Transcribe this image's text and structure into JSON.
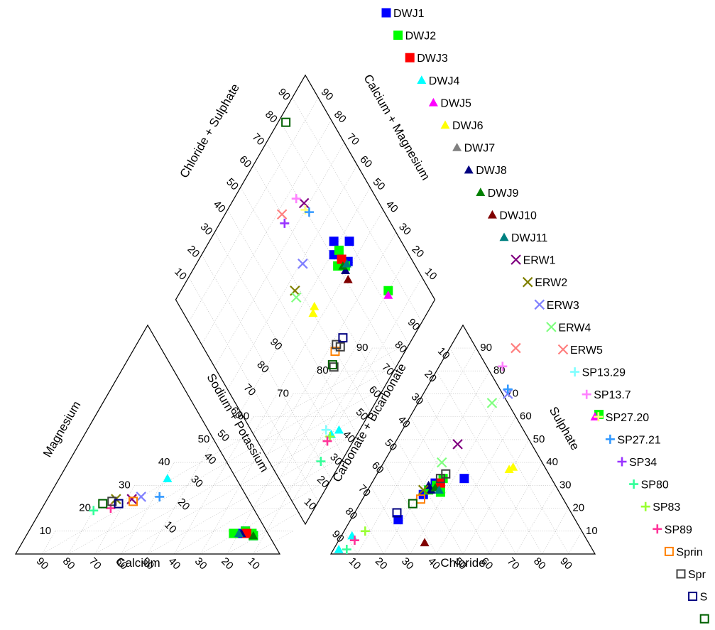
{
  "chart_data": {
    "type": "scatter",
    "subtype": "piper-diagram",
    "title": "",
    "axes": {
      "cation_bottom": "Calcium",
      "cation_left": "Magnesium",
      "cation_right": "Sodium + Potassium",
      "anion_bottom": "Chloride",
      "anion_left": "Carbonate + Bicarbonate",
      "anion_right": "Sulphate",
      "diamond_left": "Chloride + Sulphate",
      "diamond_right": "Calcium + Magnesium"
    },
    "ticks": [
      "10",
      "20",
      "30",
      "40",
      "50",
      "60",
      "70",
      "80",
      "90"
    ],
    "range": [
      0,
      100
    ],
    "grid": true,
    "legend_position": "right",
    "series": [
      {
        "name": "DWJ1",
        "marker": "square",
        "color": "#0000ff",
        "cations": [
          [
            14,
            8
          ],
          [
            20,
            9
          ],
          [
            18,
            10
          ]
        ],
        "anions": [
          [
            24,
            31
          ],
          [
            34,
            33
          ],
          [
            22,
            26
          ],
          [
            18,
            15
          ]
        ],
        "diamond": [
          [
            42,
            75
          ],
          [
            49,
            71
          ],
          [
            52,
            74
          ],
          [
            46,
            80
          ]
        ]
      },
      {
        "name": "DWJ2",
        "marker": "square",
        "color": "#00ff00",
        "cations": [
          [
            18,
            10
          ],
          [
            22,
            9
          ],
          [
            15,
            9
          ],
          [
            14,
            8
          ]
        ],
        "anions": [
          [
            25,
            30
          ],
          [
            26,
            33
          ],
          [
            28,
            27
          ],
          [
            23,
            28
          ],
          [
            71,
            61
          ]
        ],
        "diamond": [
          [
            42,
            73
          ],
          [
            45,
            70
          ],
          [
            48,
            74
          ],
          [
            20,
            84
          ]
        ]
      },
      {
        "name": "DWJ3",
        "marker": "square",
        "color": "#ff0000",
        "cations": [
          [
            17,
            9
          ]
        ],
        "anions": [
          [
            26,
            31
          ]
        ],
        "diamond": [
          [
            45,
            73
          ]
        ]
      },
      {
        "name": "DWJ4",
        "marker": "triangle",
        "color": "#00ffff",
        "cations": [
          [
            59,
            33
          ]
        ],
        "anions": [
          [
            2,
            2
          ],
          [
            4,
            8
          ]
        ],
        "diamond": [
          [
            8,
            34
          ],
          [
            10,
            30
          ]
        ]
      },
      {
        "name": "DWJ5",
        "marker": "triangle",
        "color": "#ff00ff",
        "cations": [],
        "anions": [
          [
            70,
            60
          ]
        ],
        "diamond": [
          [
            19,
            83
          ]
        ]
      },
      {
        "name": "DWJ6",
        "marker": "triangle",
        "color": "#ffff00",
        "cations": [],
        "anions": [
          [
            50,
            38
          ],
          [
            49,
            37
          ]
        ],
        "diamond": [
          [
            44,
            50
          ],
          [
            45,
            52
          ]
        ]
      },
      {
        "name": "DWJ7",
        "marker": "triangle",
        "color": "#808080",
        "cations": [],
        "anions": [],
        "diamond": []
      },
      {
        "name": "DWJ8",
        "marker": "triangle",
        "color": "#000080",
        "cations": [
          [
            19,
            9
          ]
        ],
        "anions": [
          [
            24,
            28
          ],
          [
            22,
            30
          ]
        ],
        "diamond": [
          [
            41,
            72
          ]
        ]
      },
      {
        "name": "DWJ9",
        "marker": "triangle",
        "color": "#008000",
        "cations": [
          [
            14,
            8
          ]
        ],
        "anions": [
          [
            25,
            29
          ]
        ],
        "diamond": [
          [
            43,
            72
          ]
        ]
      },
      {
        "name": "DWJ10",
        "marker": "triangle",
        "color": "#800000",
        "cations": [],
        "anions": [
          [
            33,
            5
          ]
        ],
        "diamond": [
          [
            38,
            71
          ]
        ]
      },
      {
        "name": "DWJ11",
        "marker": "triangle",
        "color": "#008080",
        "cations": [
          [
            20,
            9
          ]
        ],
        "anions": [
          [
            27,
            28
          ]
        ],
        "diamond": [
          [
            42,
            74
          ]
        ]
      },
      {
        "name": "ERW1",
        "marker": "x",
        "color": "#800080",
        "cations": [
          [
            68,
            24
          ]
        ],
        "anions": [
          [
            24,
            48
          ]
        ],
        "diamond": [
          [
            72,
            71
          ]
        ]
      },
      {
        "name": "ERW2",
        "marker": "x",
        "color": "#808000",
        "cations": [
          [
            74,
            24
          ]
        ],
        "anions": [
          [
            21,
            28
          ]
        ],
        "diamond": [
          [
            56,
            48
          ]
        ]
      },
      {
        "name": "ERW3",
        "marker": "x",
        "color": "#8080ff",
        "cations": [
          [
            65,
            25
          ]
        ],
        "anions": [
          [
            32,
            70
          ]
        ],
        "diamond": [
          [
            59,
            57
          ]
        ]
      },
      {
        "name": "ERW4",
        "marker": "x",
        "color": "#80ff80",
        "cations": [],
        "anions": [
          [
            22,
            40
          ],
          [
            28,
            66
          ]
        ],
        "diamond": [
          [
            54,
            47
          ]
        ]
      },
      {
        "name": "ERW5",
        "marker": "x",
        "color": "#ff8080",
        "cations": [],
        "anions": [
          [
            25,
            90
          ]
        ],
        "diamond": [
          [
            78,
            60
          ]
        ]
      },
      {
        "name": "SP13.29",
        "marker": "plus",
        "color": "#80ffff",
        "cations": [],
        "anions": [],
        "diamond": [
          [
            13,
            29
          ]
        ]
      },
      {
        "name": "SP13.7",
        "marker": "plus",
        "color": "#ff80ff",
        "cations": [],
        "anions": [
          [
            24,
            82
          ]
        ],
        "diamond": [
          [
            76,
            69
          ]
        ]
      },
      {
        "name": "SP27.20",
        "marker": "plus",
        "color": "#ffff80",
        "cations": [],
        "anions": [],
        "diamond": [
          [
            70,
            70
          ]
        ]
      },
      {
        "name": "SP27.21",
        "marker": "plus",
        "color": "#3399ff",
        "cations": [
          [
            58,
            25
          ]
        ],
        "anions": [
          [
            31,
            72
          ]
        ],
        "diamond": [
          [
            68,
            71
          ]
        ]
      },
      {
        "name": "SP34",
        "marker": "plus",
        "color": "#9933ff",
        "cations": [],
        "anions": [],
        "diamond": [
          [
            75,
            59
          ]
        ]
      },
      {
        "name": "SP80",
        "marker": "plus",
        "color": "#33ff99",
        "cations": [
          [
            80,
            19
          ]
        ],
        "anions": [
          [
            5,
            2
          ]
        ],
        "diamond": [
          [
            8,
            20
          ]
        ]
      },
      {
        "name": "SP83",
        "marker": "plus",
        "color": "#99ff33",
        "cations": [],
        "anions": [
          [
            8,
            10
          ]
        ],
        "diamond": [
          [
            10,
            29
          ]
        ]
      },
      {
        "name": "SP89",
        "marker": "plus",
        "color": "#ff3399",
        "cations": [
          [
            74,
            20
          ]
        ],
        "anions": [
          [
            6,
            6
          ]
        ],
        "diamond": [
          [
            10,
            27
          ]
        ]
      },
      {
        "name": "Sprin",
        "marker": "open-square",
        "color": "#ff8000",
        "cations": [
          [
            67,
            23
          ]
        ],
        "anions": [
          [
            22,
            24
          ]
        ],
        "diamond": [
          [
            27,
            50
          ]
        ]
      },
      {
        "name": "Spr",
        "marker": "open-square",
        "color": "#404040",
        "cations": [
          [
            75,
            23
          ]
        ],
        "anions": [
          [
            25,
            33
          ],
          [
            26,
            35
          ]
        ],
        "diamond": [
          [
            26,
            53
          ],
          [
            28,
            52
          ],
          [
            24,
            46
          ]
        ]
      },
      {
        "name": "S",
        "marker": "open-square",
        "color": "#000080",
        "cations": [
          [
            72,
            22
          ]
        ],
        "anions": [
          [
            16,
            18
          ]
        ],
        "diamond": [
          [
            27,
            56
          ]
        ]
      },
      {
        "name": "",
        "marker": "open-square",
        "color": "#006000",
        "cations": [
          [
            78,
            22
          ]
        ],
        "anions": [
          [
            20,
            22
          ]
        ],
        "diamond": [
          [
            97,
            82
          ],
          [
            25,
            46
          ]
        ]
      }
    ]
  },
  "legend_items": [
    "DWJ1",
    "DWJ2",
    "DWJ3",
    "DWJ4",
    "DWJ5",
    "DWJ6",
    "DWJ7",
    "DWJ8",
    "DWJ9",
    "DWJ10",
    "DWJ11",
    "ERW1",
    "ERW2",
    "ERW3",
    "ERW4",
    "ERW5",
    "SP13.29",
    "SP13.7",
    "SP27.20",
    "SP27.21",
    "SP34",
    "SP80",
    "SP83",
    "SP89",
    "Sprin",
    "Spr",
    "S",
    ""
  ]
}
